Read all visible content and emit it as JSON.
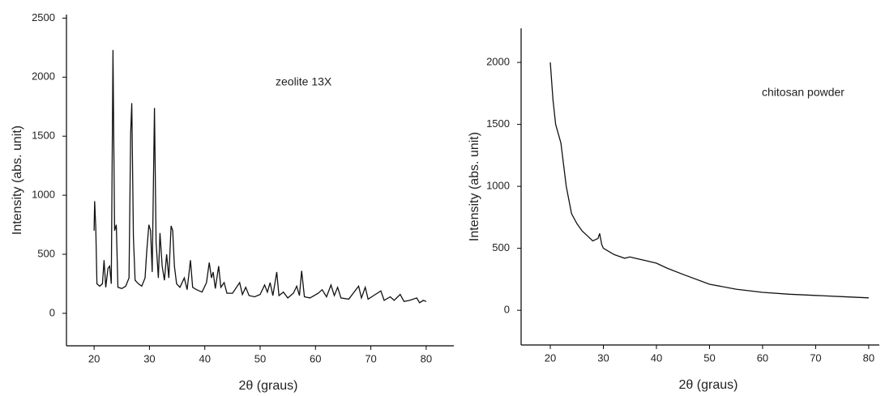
{
  "chart_data": [
    {
      "type": "line",
      "annotation": "zeolite 13X",
      "xlabel": "2θ (graus)",
      "ylabel": "Intensity (abs. unit)",
      "color": "#111111",
      "xlim": [
        15,
        85
      ],
      "xticks": [
        20,
        30,
        40,
        50,
        60,
        70,
        80
      ],
      "ylim": [
        -275,
        2530
      ],
      "yticks": [
        0,
        500,
        1000,
        1500,
        2000,
        2500
      ],
      "x": [
        20,
        20.1,
        20.3,
        20.5,
        21,
        21.5,
        21.8,
        22.1,
        22.5,
        22.8,
        23.1,
        23.4,
        23.7,
        24,
        24.3,
        25,
        25.7,
        26.3,
        26.6,
        26.8,
        27.1,
        27.4,
        28,
        28.6,
        29.2,
        29.5,
        29.9,
        30.2,
        30.5,
        30.9,
        31.2,
        31.6,
        31.9,
        32.3,
        32.7,
        33.1,
        33.5,
        33.9,
        34.2,
        34.5,
        34.9,
        35.5,
        36.3,
        36.8,
        37.4,
        37.8,
        38.5,
        39.5,
        40.3,
        40.8,
        41.2,
        41.5,
        41.9,
        42.5,
        42.9,
        43.5,
        44,
        45,
        46.3,
        46.8,
        47.4,
        48,
        49,
        50,
        50.8,
        51.3,
        51.8,
        52.3,
        53,
        53.4,
        54.2,
        55,
        56,
        56.6,
        57.1,
        57.5,
        58,
        59,
        60.5,
        61.2,
        62,
        62.8,
        63.4,
        64,
        64.6,
        66,
        67.8,
        68.3,
        69,
        69.5,
        70.5,
        71.8,
        72.4,
        73.5,
        74.2,
        75.3,
        76,
        77,
        78.3,
        78.8,
        79.5,
        80
      ],
      "values": [
        700,
        950,
        720,
        250,
        230,
        250,
        450,
        220,
        380,
        400,
        250,
        2230,
        700,
        750,
        220,
        210,
        230,
        300,
        1520,
        1780,
        650,
        280,
        250,
        230,
        300,
        520,
        750,
        700,
        350,
        1740,
        600,
        300,
        680,
        400,
        280,
        500,
        300,
        740,
        700,
        400,
        250,
        220,
        300,
        200,
        450,
        220,
        200,
        180,
        260,
        430,
        300,
        350,
        210,
        400,
        220,
        260,
        170,
        170,
        260,
        160,
        220,
        150,
        140,
        160,
        240,
        180,
        260,
        150,
        350,
        150,
        180,
        130,
        170,
        230,
        150,
        360,
        140,
        130,
        170,
        200,
        140,
        240,
        150,
        220,
        130,
        120,
        230,
        130,
        220,
        120,
        150,
        190,
        110,
        140,
        110,
        160,
        100,
        110,
        130,
        90,
        110,
        100
      ]
    },
    {
      "type": "line",
      "annotation": "chitosan powder",
      "xlabel": "2θ (graus)",
      "ylabel": "Intensity (abs. unit)",
      "color": "#111111",
      "xlim": [
        14.5,
        82
      ],
      "xticks": [
        20,
        30,
        40,
        50,
        60,
        70,
        80
      ],
      "ylim": [
        -280,
        2275
      ],
      "yticks": [
        0,
        500,
        1000,
        1500,
        2000
      ],
      "x": [
        20,
        20.5,
        21,
        22,
        23,
        24,
        25,
        26,
        27,
        28,
        29,
        29.3,
        29.7,
        30,
        32,
        34,
        35,
        36,
        38,
        40,
        42,
        45,
        50,
        55,
        60,
        65,
        70,
        75,
        80
      ],
      "values": [
        2000,
        1700,
        1500,
        1350,
        1000,
        780,
        700,
        640,
        600,
        560,
        580,
        620,
        530,
        500,
        450,
        420,
        430,
        420,
        400,
        380,
        340,
        290,
        210,
        170,
        145,
        130,
        120,
        110,
        100
      ]
    }
  ]
}
